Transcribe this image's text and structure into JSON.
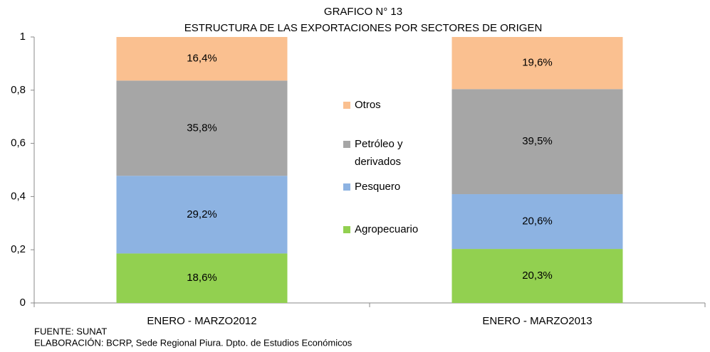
{
  "chart_data": {
    "type": "stacked_bar",
    "title": "GRAFICO N° 13",
    "subtitle": "ESTRUCTURA DE LAS EXPORTACIONES POR SECTORES DE ORIGEN",
    "categories": [
      "ENERO - MARZO2012",
      "ENERO - MARZO2013"
    ],
    "series": [
      {
        "name": "Agropecuario",
        "color": "#92d050",
        "values": [
          0.186,
          0.203
        ],
        "value_labels": [
          "18,6%",
          "20,3%"
        ]
      },
      {
        "name": "Pesquero",
        "color": "#8db3e2",
        "values": [
          0.292,
          0.206
        ],
        "value_labels": [
          "29,2%",
          "20,6%"
        ]
      },
      {
        "name": "Petróleo y derivados",
        "color": "#a6a6a6",
        "values": [
          0.358,
          0.395
        ],
        "value_labels": [
          "35,8%",
          "39,5%"
        ]
      },
      {
        "name": "Otros",
        "color": "#fac090",
        "values": [
          0.164,
          0.196
        ],
        "value_labels": [
          "16,4%",
          "19,6%"
        ]
      }
    ],
    "ylim": [
      0,
      1
    ],
    "yticks": [
      0,
      {
        "value": 0.2,
        "label": "0,2"
      },
      {
        "value": 0.4,
        "label": "0,4"
      },
      {
        "value": 0.6,
        "label": "0,6"
      },
      {
        "value": 0.8,
        "label": "0,8"
      },
      1
    ],
    "grid": false,
    "legend": "center",
    "source": [
      "FUENTE: SUNAT",
      "ELABORACIÓN: BCRP, Sede Regional Piura. Dpto. de Estudios Económicos"
    ]
  }
}
